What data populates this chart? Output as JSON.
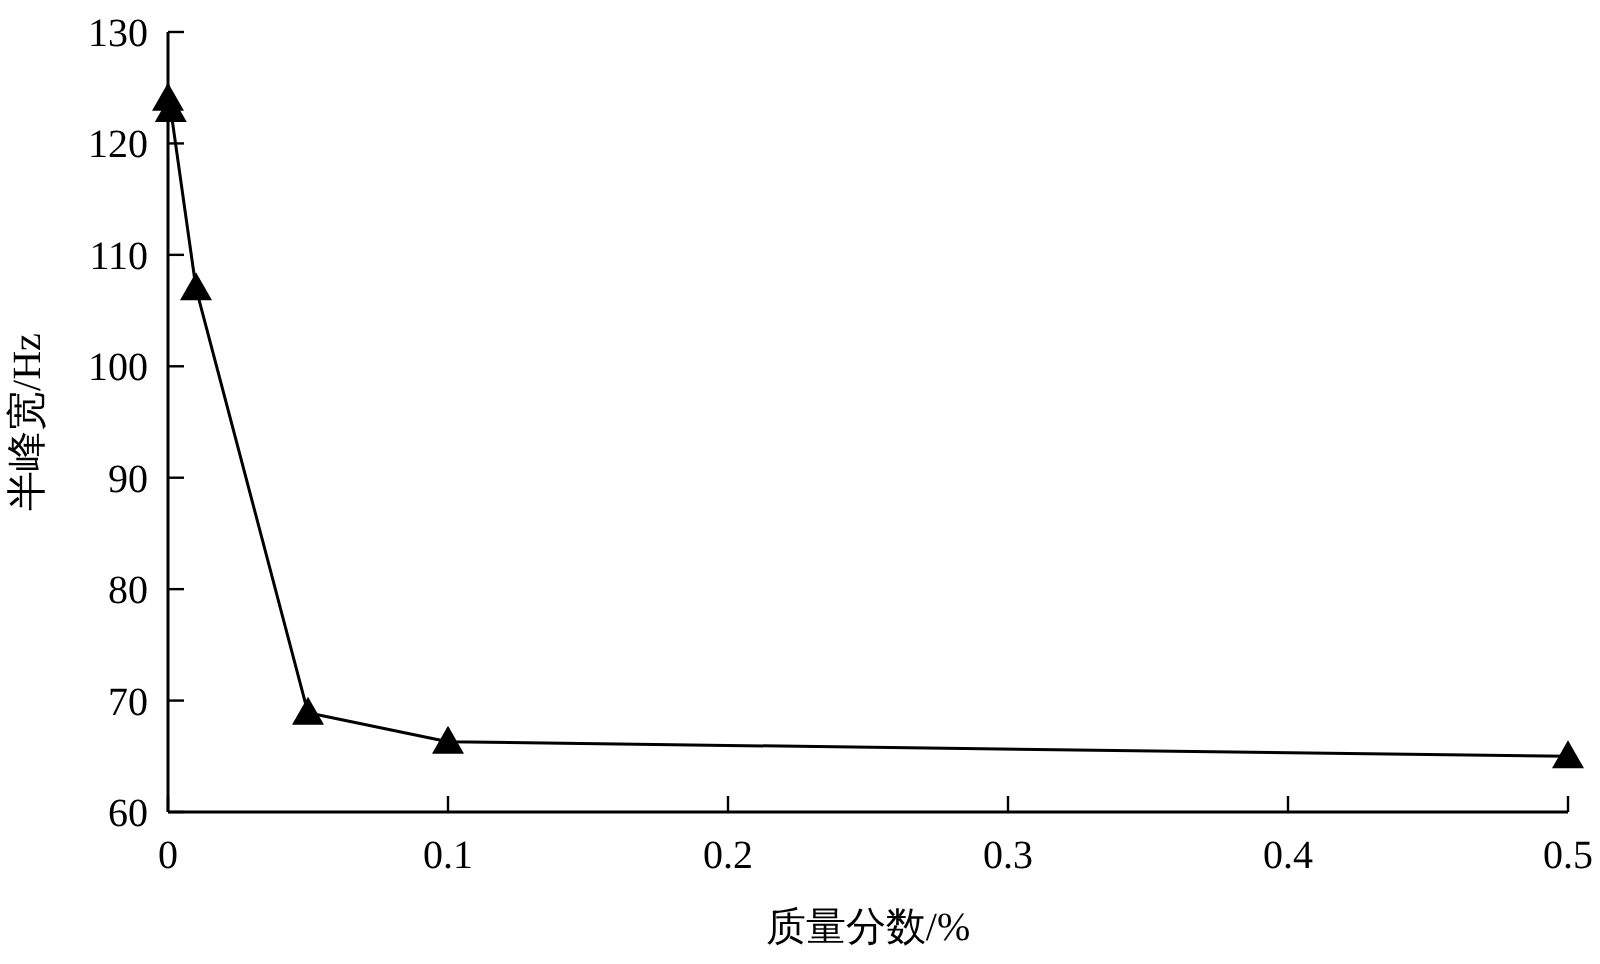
{
  "chart_data": {
    "type": "line",
    "xlabel": "质量分数/%",
    "ylabel": "半峰宽/Hz",
    "x": [
      0,
      0.001,
      0.01,
      0.05,
      0.1,
      0.5
    ],
    "series": [
      {
        "color": "#000000",
        "values": [
          124,
          123,
          107,
          68.9,
          66.3,
          65
        ]
      }
    ],
    "marker": "triangle",
    "line_style": "solid",
    "xlim": [
      0,
      0.5
    ],
    "xticks": [
      0,
      0.1,
      0.2,
      0.3,
      0.4,
      0.5
    ],
    "ylim": [
      60,
      130
    ],
    "yticks": [
      60,
      70,
      80,
      90,
      100,
      110,
      120,
      130
    ]
  }
}
